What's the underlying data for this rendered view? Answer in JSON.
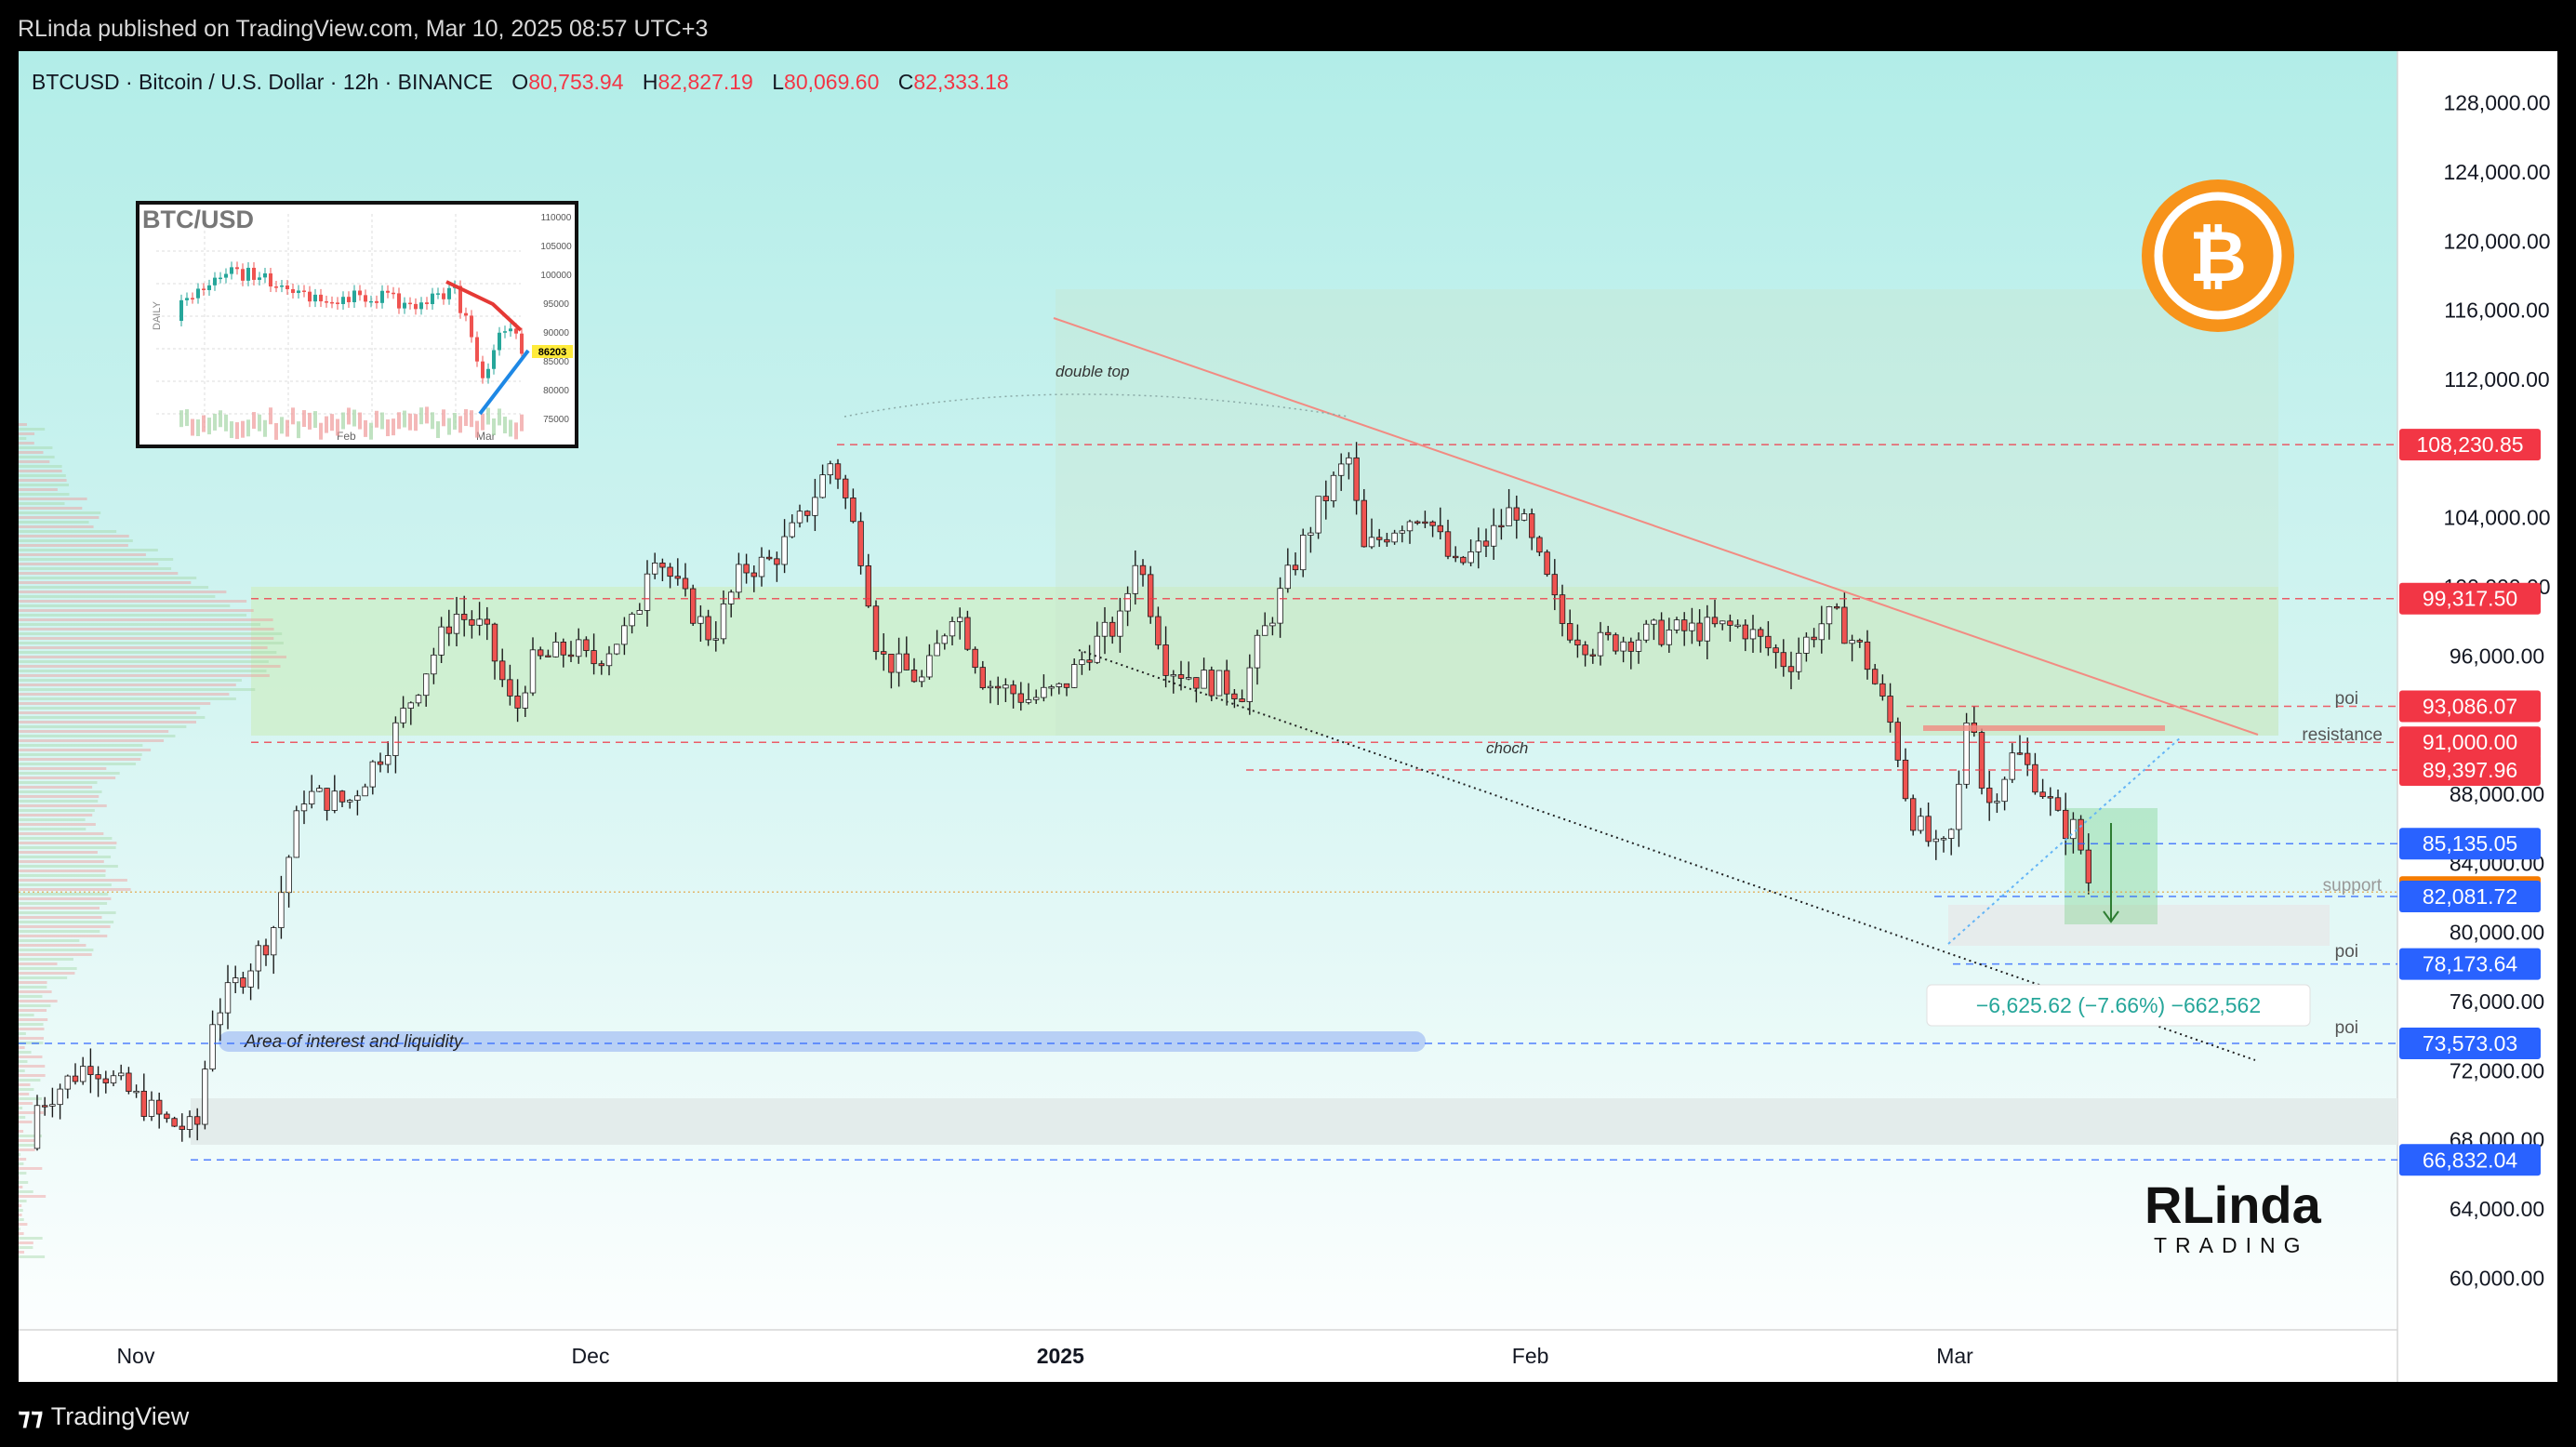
{
  "header": {
    "published": "RLinda published on TradingView.com, Mar 10, 2025 08:57 UTC+3",
    "symbol": "BTCUSD · Bitcoin / U.S. Dollar · 12h · BINANCE",
    "o_label": "O",
    "o_value": "80,753.94",
    "h_label": "H",
    "h_value": "82,827.19",
    "l_label": "L",
    "l_value": "80,069.60",
    "c_label": "C",
    "c_value": "82,333.18"
  },
  "footer": {
    "brand": "TradingView"
  },
  "colors": {
    "up": "#26a69a",
    "down": "#ef5350",
    "bg_top": "#b2ede8",
    "bg_bottom": "#ffffff",
    "red_label": "#f23645",
    "blue_label": "#2962ff",
    "orange_label": "#f57c00",
    "trendline": "#f28b82"
  },
  "annotations": {
    "double_top": "double top",
    "choch": "choch",
    "poi_1": "poi",
    "poi_2": "poi",
    "poi_3": "poi",
    "resistance": "resistance",
    "support": "support",
    "area_interest": "Area of interest and liquidity",
    "measure": "−6,625.62 (−7.66%) −662,562"
  },
  "inset": {
    "title": "BTC/USD",
    "side_label": "DAILY",
    "price_tag": "86203",
    "ticks": [
      "110000",
      "105000",
      "100000",
      "95000",
      "90000",
      "85000",
      "80000",
      "75000"
    ],
    "months": [
      "Feb",
      "Mar"
    ]
  },
  "logo": {
    "name": "RLinda",
    "sub": "TRADING",
    "icon": "bitcoin-icon"
  },
  "chart_data": {
    "type": "candlestick",
    "symbol": "BTCUSD",
    "interval": "12h",
    "exchange": "BINANCE",
    "ylim": [
      57000,
      131000
    ],
    "y_ticks": [
      60000,
      64000,
      68000,
      72000,
      76000,
      80000,
      84000,
      88000,
      96000,
      100000,
      104000,
      112000,
      116000,
      120000,
      124000,
      128000
    ],
    "y_tick_labels": [
      "60,000.00",
      "64,000.00",
      "68,000.00",
      "72,000.00",
      "76,000.00",
      "80,000.00",
      "84,000.00",
      "88,000.00",
      "96,000.00",
      "100,000.00",
      "104,000.00",
      "112,000.00",
      "116,000.00",
      "120,000.00",
      "124,000.00",
      "128,000.00"
    ],
    "x_labels": [
      "Nov",
      "Dec",
      "2025",
      "Feb",
      "Mar"
    ],
    "x_label_dates": [
      "2024-11-01",
      "2024-12-01",
      "2025-01-01",
      "2025-02-01",
      "2025-03-01"
    ],
    "price_levels": [
      {
        "value": 108230.85,
        "label": "108,230.85",
        "kind": "red"
      },
      {
        "value": 99317.5,
        "label": "99,317.50",
        "kind": "red"
      },
      {
        "value": 93086.07,
        "label": "93,086.07",
        "kind": "red"
      },
      {
        "value": 91000.0,
        "label": "91,000.00",
        "kind": "red"
      },
      {
        "value": 89397.96,
        "label": "89,397.96",
        "kind": "red"
      },
      {
        "value": 85135.05,
        "label": "85,135.05",
        "kind": "blue"
      },
      {
        "value": 82333.18,
        "label": "82,333.18",
        "kind": "orange"
      },
      {
        "value": 82081.72,
        "label": "82,081.72",
        "kind": "blue"
      },
      {
        "value": 78173.64,
        "label": "78,173.64",
        "kind": "blue"
      },
      {
        "value": 73573.03,
        "label": "73,573.03",
        "kind": "blue"
      },
      {
        "value": 66832.04,
        "label": "66,832.04",
        "kind": "blue"
      }
    ],
    "path_points": [
      [
        "2024-10-22",
        67500
      ],
      [
        "2024-10-29",
        72500
      ],
      [
        "2024-11-03",
        69000
      ],
      [
        "2024-11-05",
        68500
      ],
      [
        "2024-11-06",
        75000
      ],
      [
        "2024-11-10",
        80000
      ],
      [
        "2024-11-12",
        88000
      ],
      [
        "2024-11-15",
        87500
      ],
      [
        "2024-11-18",
        91500
      ],
      [
        "2024-11-22",
        98500
      ],
      [
        "2024-11-24",
        97500
      ],
      [
        "2024-11-26",
        92500
      ],
      [
        "2024-11-27",
        95500
      ],
      [
        "2024-11-30",
        96500
      ],
      [
        "2024-12-01",
        95500
      ],
      [
        "2024-12-04",
        98000
      ],
      [
        "2024-12-05",
        102500
      ],
      [
        "2024-12-07",
        99500
      ],
      [
        "2024-12-09",
        97000
      ],
      [
        "2024-12-11",
        101000
      ],
      [
        "2024-12-13",
        101500
      ],
      [
        "2024-12-15",
        104000
      ],
      [
        "2024-12-17",
        107500
      ],
      [
        "2024-12-19",
        101500
      ],
      [
        "2024-12-20",
        96000
      ],
      [
        "2024-12-23",
        94500
      ],
      [
        "2024-12-25",
        99000
      ],
      [
        "2024-12-27",
        94500
      ],
      [
        "2024-12-30",
        93500
      ],
      [
        "2025-01-01",
        94000
      ],
      [
        "2025-01-03",
        96500
      ],
      [
        "2025-01-05",
        98000
      ],
      [
        "2025-01-06",
        102000
      ],
      [
        "2025-01-08",
        95500
      ],
      [
        "2025-01-10",
        94700
      ],
      [
        "2025-01-13",
        94000
      ],
      [
        "2025-01-14",
        96500
      ],
      [
        "2025-01-16",
        100500
      ],
      [
        "2025-01-18",
        104500
      ],
      [
        "2025-01-20",
        107500
      ],
      [
        "2025-01-21",
        102000
      ],
      [
        "2025-01-23",
        103500
      ],
      [
        "2025-01-25",
        104500
      ],
      [
        "2025-01-27",
        101000
      ],
      [
        "2025-01-29",
        102500
      ],
      [
        "2025-01-31",
        104700
      ],
      [
        "2025-02-02",
        100500
      ],
      [
        "2025-02-03",
        98000
      ],
      [
        "2025-02-05",
        96600
      ],
      [
        "2025-02-09",
        97300
      ],
      [
        "2025-02-12",
        97500
      ],
      [
        "2025-02-15",
        97700
      ],
      [
        "2025-02-18",
        95500
      ],
      [
        "2025-02-20",
        97800
      ],
      [
        "2025-02-21",
        98300
      ],
      [
        "2025-02-23",
        96100
      ],
      [
        "2025-02-25",
        91500
      ],
      [
        "2025-02-26",
        87000
      ],
      [
        "2025-02-28",
        84300
      ],
      [
        "2025-03-01",
        86100
      ],
      [
        "2025-03-02",
        94200
      ],
      [
        "2025-03-03",
        87000
      ],
      [
        "2025-03-05",
        90500
      ],
      [
        "2025-03-07",
        88000
      ],
      [
        "2025-03-08",
        86100
      ],
      [
        "2025-03-09",
        86000
      ],
      [
        "2025-03-10",
        82333
      ]
    ]
  }
}
